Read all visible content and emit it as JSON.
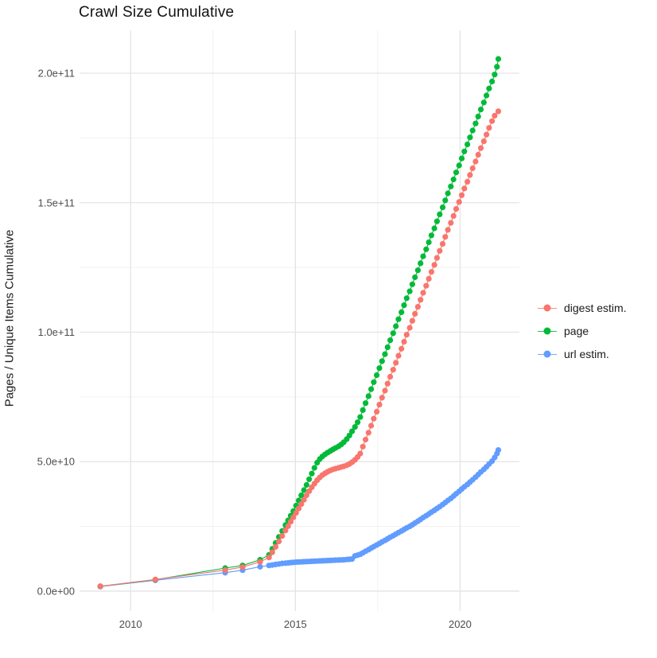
{
  "chart_data": {
    "type": "scatter",
    "title": "Crawl Size Cumulative",
    "xlabel": "",
    "ylabel": "Pages / Unique Items Cumulative",
    "y_unit": "items, point values stored in billions (1e9)",
    "x_unit": "calendar year (decimal)",
    "grid": true,
    "legend_position": "right",
    "xlim": [
      2008.45,
      2021.8
    ],
    "ylim_billions": [
      -7.7,
      216.6
    ],
    "x_ticks": [
      {
        "v": 2010,
        "label": "2010"
      },
      {
        "v": 2015,
        "label": "2015"
      },
      {
        "v": 2020,
        "label": "2020"
      }
    ],
    "y_ticks": [
      {
        "v": 0,
        "label": "0.0e+00"
      },
      {
        "v": 50,
        "label": "5.0e+10"
      },
      {
        "v": 100,
        "label": "1.0e+11"
      },
      {
        "v": 150,
        "label": "1.5e+11"
      },
      {
        "v": 200,
        "label": "2.0e+11"
      }
    ],
    "x_minor": [
      2012.5,
      2017.5
    ],
    "y_minor_billions": [
      25,
      75,
      125,
      175
    ],
    "series": [
      {
        "name": "digest estim.",
        "color": "#F8766D",
        "points_year_billions": [
          [
            2009.08,
            1.9
          ],
          [
            2010.75,
            4.5
          ],
          [
            2012.87,
            8.1
          ],
          [
            2013.4,
            9.3
          ],
          [
            2013.93,
            11.3
          ],
          [
            2014.2,
            13.0
          ],
          [
            2014.3,
            15.0
          ],
          [
            2014.4,
            17.1
          ],
          [
            2014.5,
            19.2
          ],
          [
            2014.6,
            21.3
          ],
          [
            2014.7,
            23.4
          ],
          [
            2014.78,
            25.1
          ],
          [
            2014.86,
            26.8
          ],
          [
            2014.94,
            28.5
          ],
          [
            2015.02,
            30.2
          ],
          [
            2015.1,
            31.9
          ],
          [
            2015.18,
            33.6
          ],
          [
            2015.26,
            35.3
          ],
          [
            2015.34,
            37.0
          ],
          [
            2015.42,
            38.6
          ],
          [
            2015.5,
            40.1
          ],
          [
            2015.58,
            41.5
          ],
          [
            2015.66,
            42.8
          ],
          [
            2015.74,
            43.9
          ],
          [
            2015.82,
            44.8
          ],
          [
            2015.9,
            45.5
          ],
          [
            2015.98,
            46.1
          ],
          [
            2016.06,
            46.6
          ],
          [
            2016.14,
            47.0
          ],
          [
            2016.22,
            47.3
          ],
          [
            2016.31,
            47.6
          ],
          [
            2016.39,
            47.9
          ],
          [
            2016.47,
            48.2
          ],
          [
            2016.56,
            48.6
          ],
          [
            2016.64,
            49.1
          ],
          [
            2016.72,
            49.8
          ],
          [
            2016.81,
            50.7
          ],
          [
            2016.89,
            51.8
          ],
          [
            2016.97,
            53.1
          ],
          [
            2017.05,
            55.8
          ],
          [
            2017.13,
            58.5
          ],
          [
            2017.22,
            61.2
          ],
          [
            2017.3,
            63.9
          ],
          [
            2017.38,
            66.6
          ],
          [
            2017.47,
            69.3
          ],
          [
            2017.55,
            72.0
          ],
          [
            2017.63,
            74.7
          ],
          [
            2017.72,
            77.4
          ],
          [
            2017.8,
            80.1
          ],
          [
            2017.88,
            82.8
          ],
          [
            2017.97,
            85.5
          ],
          [
            2018.05,
            88.2
          ],
          [
            2018.13,
            90.9
          ],
          [
            2018.22,
            93.6
          ],
          [
            2018.3,
            96.3
          ],
          [
            2018.38,
            99.0
          ],
          [
            2018.47,
            101.7
          ],
          [
            2018.55,
            104.4
          ],
          [
            2018.63,
            107.1
          ],
          [
            2018.72,
            109.8
          ],
          [
            2018.8,
            112.5
          ],
          [
            2018.88,
            115.2
          ],
          [
            2018.97,
            117.9
          ],
          [
            2019.05,
            120.6
          ],
          [
            2019.13,
            123.3
          ],
          [
            2019.22,
            126.0
          ],
          [
            2019.3,
            128.7
          ],
          [
            2019.38,
            131.4
          ],
          [
            2019.47,
            134.1
          ],
          [
            2019.55,
            136.8
          ],
          [
            2019.63,
            139.5
          ],
          [
            2019.72,
            142.2
          ],
          [
            2019.8,
            144.9
          ],
          [
            2019.88,
            147.6
          ],
          [
            2019.97,
            150.3
          ],
          [
            2020.05,
            152.9
          ],
          [
            2020.13,
            155.5
          ],
          [
            2020.22,
            158.1
          ],
          [
            2020.3,
            160.7
          ],
          [
            2020.38,
            163.3
          ],
          [
            2020.47,
            165.9
          ],
          [
            2020.55,
            168.5
          ],
          [
            2020.63,
            171.1
          ],
          [
            2020.72,
            173.7
          ],
          [
            2020.8,
            176.3
          ],
          [
            2020.88,
            178.9
          ],
          [
            2020.97,
            181.5
          ],
          [
            2021.05,
            183.6
          ],
          [
            2021.16,
            185.3
          ]
        ]
      },
      {
        "name": "page",
        "color": "#00BA38",
        "points_year_billions": [
          [
            2009.08,
            1.85
          ],
          [
            2010.75,
            4.4
          ],
          [
            2012.87,
            8.9
          ],
          [
            2013.4,
            9.9
          ],
          [
            2013.93,
            12.1
          ],
          [
            2014.2,
            14.0
          ],
          [
            2014.3,
            16.3
          ],
          [
            2014.4,
            18.6
          ],
          [
            2014.5,
            20.9
          ],
          [
            2014.6,
            23.2
          ],
          [
            2014.7,
            25.5
          ],
          [
            2014.78,
            27.3
          ],
          [
            2014.86,
            29.1
          ],
          [
            2014.94,
            30.9
          ],
          [
            2015.02,
            33.0
          ],
          [
            2015.1,
            35.0
          ],
          [
            2015.18,
            37.0
          ],
          [
            2015.26,
            39.0
          ],
          [
            2015.34,
            41.0
          ],
          [
            2015.42,
            43.2
          ],
          [
            2015.5,
            45.4
          ],
          [
            2015.58,
            47.6
          ],
          [
            2015.66,
            49.6
          ],
          [
            2015.74,
            51.0
          ],
          [
            2015.82,
            52.0
          ],
          [
            2015.9,
            52.8
          ],
          [
            2015.98,
            53.5
          ],
          [
            2016.06,
            54.1
          ],
          [
            2016.14,
            54.7
          ],
          [
            2016.22,
            55.3
          ],
          [
            2016.31,
            55.9
          ],
          [
            2016.39,
            56.6
          ],
          [
            2016.47,
            57.5
          ],
          [
            2016.56,
            58.7
          ],
          [
            2016.64,
            60.1
          ],
          [
            2016.72,
            61.7
          ],
          [
            2016.81,
            63.4
          ],
          [
            2016.89,
            65.2
          ],
          [
            2016.97,
            67.2
          ],
          [
            2017.05,
            69.9
          ],
          [
            2017.13,
            72.6
          ],
          [
            2017.22,
            75.3
          ],
          [
            2017.3,
            78.0
          ],
          [
            2017.38,
            80.7
          ],
          [
            2017.47,
            83.4
          ],
          [
            2017.55,
            86.1
          ],
          [
            2017.63,
            88.8
          ],
          [
            2017.72,
            91.5
          ],
          [
            2017.8,
            94.2
          ],
          [
            2017.88,
            96.9
          ],
          [
            2017.97,
            99.6
          ],
          [
            2018.05,
            102.3
          ],
          [
            2018.13,
            105.0
          ],
          [
            2018.22,
            107.7
          ],
          [
            2018.3,
            110.4
          ],
          [
            2018.38,
            113.1
          ],
          [
            2018.47,
            115.8
          ],
          [
            2018.55,
            118.5
          ],
          [
            2018.63,
            121.2
          ],
          [
            2018.72,
            123.9
          ],
          [
            2018.8,
            126.6
          ],
          [
            2018.88,
            129.3
          ],
          [
            2018.97,
            132.0
          ],
          [
            2019.05,
            134.7
          ],
          [
            2019.13,
            137.4
          ],
          [
            2019.22,
            140.1
          ],
          [
            2019.3,
            142.8
          ],
          [
            2019.38,
            145.5
          ],
          [
            2019.47,
            148.2
          ],
          [
            2019.55,
            150.9
          ],
          [
            2019.63,
            153.6
          ],
          [
            2019.72,
            156.3
          ],
          [
            2019.8,
            159.0
          ],
          [
            2019.88,
            161.7
          ],
          [
            2019.97,
            164.4
          ],
          [
            2020.05,
            167.1
          ],
          [
            2020.13,
            169.8
          ],
          [
            2020.22,
            172.5
          ],
          [
            2020.3,
            175.2
          ],
          [
            2020.38,
            177.9
          ],
          [
            2020.47,
            180.6
          ],
          [
            2020.55,
            183.3
          ],
          [
            2020.63,
            186.0
          ],
          [
            2020.72,
            188.7
          ],
          [
            2020.8,
            191.4
          ],
          [
            2020.88,
            194.1
          ],
          [
            2020.97,
            196.8
          ],
          [
            2021.05,
            199.5
          ],
          [
            2021.12,
            202.5
          ],
          [
            2021.16,
            205.5
          ]
        ]
      },
      {
        "name": "url estim.",
        "color": "#619CFF",
        "points_year_billions": [
          [
            2009.08,
            1.75
          ],
          [
            2010.75,
            4.2
          ],
          [
            2012.87,
            7.1
          ],
          [
            2013.4,
            8.1
          ],
          [
            2013.93,
            9.4
          ],
          [
            2014.2,
            9.9
          ],
          [
            2014.3,
            10.1
          ],
          [
            2014.4,
            10.3
          ],
          [
            2014.5,
            10.5
          ],
          [
            2014.6,
            10.7
          ],
          [
            2014.7,
            10.8
          ],
          [
            2014.78,
            10.9
          ],
          [
            2014.86,
            11.0
          ],
          [
            2014.94,
            11.1
          ],
          [
            2015.02,
            11.2
          ],
          [
            2015.1,
            11.25
          ],
          [
            2015.18,
            11.3
          ],
          [
            2015.26,
            11.35
          ],
          [
            2015.34,
            11.4
          ],
          [
            2015.42,
            11.45
          ],
          [
            2015.5,
            11.5
          ],
          [
            2015.58,
            11.55
          ],
          [
            2015.66,
            11.6
          ],
          [
            2015.74,
            11.65
          ],
          [
            2015.82,
            11.7
          ],
          [
            2015.9,
            11.75
          ],
          [
            2015.98,
            11.8
          ],
          [
            2016.06,
            11.85
          ],
          [
            2016.14,
            11.9
          ],
          [
            2016.22,
            11.95
          ],
          [
            2016.31,
            12.0
          ],
          [
            2016.39,
            12.05
          ],
          [
            2016.47,
            12.1
          ],
          [
            2016.56,
            12.2
          ],
          [
            2016.64,
            12.3
          ],
          [
            2016.72,
            12.4
          ],
          [
            2016.81,
            13.6
          ],
          [
            2016.89,
            13.9
          ],
          [
            2016.97,
            14.2
          ],
          [
            2017.05,
            14.8
          ],
          [
            2017.13,
            15.4
          ],
          [
            2017.22,
            16.0
          ],
          [
            2017.3,
            16.6
          ],
          [
            2017.38,
            17.2
          ],
          [
            2017.47,
            17.8
          ],
          [
            2017.55,
            18.4
          ],
          [
            2017.63,
            19.0
          ],
          [
            2017.72,
            19.6
          ],
          [
            2017.8,
            20.2
          ],
          [
            2017.88,
            20.8
          ],
          [
            2017.97,
            21.4
          ],
          [
            2018.05,
            22.0
          ],
          [
            2018.13,
            22.6
          ],
          [
            2018.22,
            23.2
          ],
          [
            2018.3,
            23.8
          ],
          [
            2018.38,
            24.4
          ],
          [
            2018.47,
            25.0
          ],
          [
            2018.55,
            25.6
          ],
          [
            2018.63,
            26.3
          ],
          [
            2018.72,
            27.0
          ],
          [
            2018.8,
            27.7
          ],
          [
            2018.88,
            28.4
          ],
          [
            2018.97,
            29.1
          ],
          [
            2019.05,
            29.8
          ],
          [
            2019.13,
            30.5
          ],
          [
            2019.22,
            31.2
          ],
          [
            2019.3,
            31.9
          ],
          [
            2019.38,
            32.6
          ],
          [
            2019.47,
            33.4
          ],
          [
            2019.55,
            34.2
          ],
          [
            2019.63,
            35.0
          ],
          [
            2019.72,
            35.8
          ],
          [
            2019.8,
            36.7
          ],
          [
            2019.88,
            37.6
          ],
          [
            2019.97,
            38.5
          ],
          [
            2020.05,
            39.4
          ],
          [
            2020.13,
            40.3
          ],
          [
            2020.22,
            41.2
          ],
          [
            2020.3,
            42.1
          ],
          [
            2020.38,
            43.0
          ],
          [
            2020.47,
            44.0
          ],
          [
            2020.55,
            45.0
          ],
          [
            2020.63,
            46.0
          ],
          [
            2020.72,
            47.0
          ],
          [
            2020.8,
            48.0
          ],
          [
            2020.88,
            49.1
          ],
          [
            2020.97,
            50.2
          ],
          [
            2021.05,
            51.6
          ],
          [
            2021.12,
            53.1
          ],
          [
            2021.16,
            54.5
          ]
        ]
      }
    ]
  },
  "legend": {
    "items": [
      {
        "label": "digest estim.",
        "color": "#F8766D"
      },
      {
        "label": "page",
        "color": "#00BA38"
      },
      {
        "label": "url estim.",
        "color": "#619CFF"
      }
    ]
  },
  "colors": {
    "background": "#ffffff",
    "grid_major": "#E4E4E4",
    "grid_minor": "#F1F1F1",
    "tick_text": "#4D4D4D",
    "title_text": "#111111"
  }
}
